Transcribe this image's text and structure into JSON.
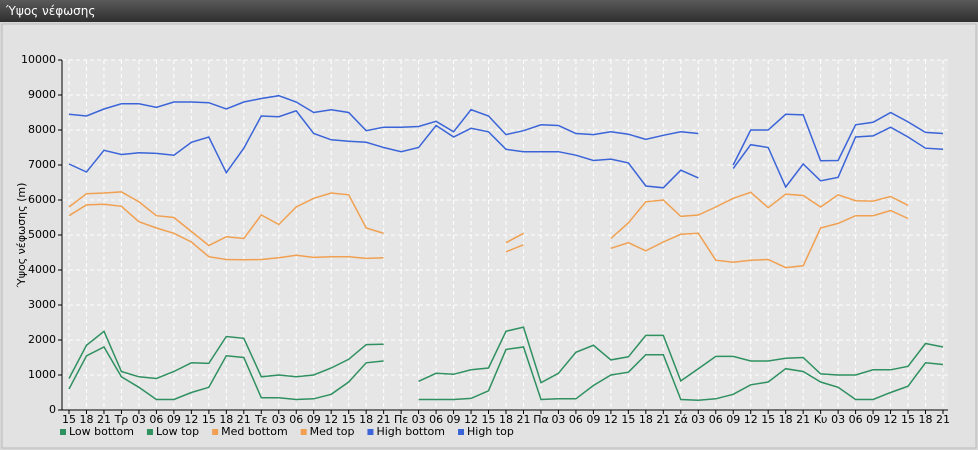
{
  "chart_data": {
    "type": "line",
    "title": "Ύψος νέφωσης",
    "y_label": "Ύψος νέφωσης (m)",
    "categories": [
      "15",
      "18",
      "21",
      "Τρ",
      "03",
      "06",
      "09",
      "12",
      "15",
      "18",
      "21",
      "Τε",
      "03",
      "06",
      "09",
      "12",
      "15",
      "18",
      "21",
      "Πε",
      "03",
      "06",
      "09",
      "12",
      "15",
      "18",
      "21",
      "Πα",
      "03",
      "06",
      "09",
      "12",
      "15",
      "18",
      "21",
      "Σά",
      "03",
      "06",
      "09",
      "12",
      "15",
      "18",
      "21",
      "Κυ",
      "03",
      "06",
      "09",
      "12",
      "15",
      "18",
      "21"
    ],
    "ylim": [
      0,
      10000
    ],
    "yticks": [
      0,
      1000,
      2000,
      3000,
      4000,
      5000,
      6000,
      7000,
      8000,
      9000,
      10000
    ],
    "grid": true,
    "legend": "bottom-left",
    "series": [
      {
        "name": "Low bottom",
        "color": "#2f9060",
        "values": [
          600,
          1550,
          1800,
          950,
          650,
          300,
          300,
          500,
          650,
          1550,
          1500,
          350,
          350,
          300,
          320,
          450,
          800,
          1350,
          1400,
          null,
          300,
          300,
          300,
          330,
          550,
          1730,
          1800,
          300,
          320,
          320,
          700,
          1000,
          1080,
          1580,
          1580,
          300,
          280,
          320,
          450,
          720,
          800,
          1180,
          1100,
          800,
          650,
          300,
          300,
          500,
          680,
          1350,
          1300
        ]
      },
      {
        "name": "Low top",
        "color": "#2f9060",
        "values": [
          900,
          1850,
          2250,
          1100,
          950,
          900,
          1100,
          1350,
          1330,
          2100,
          2050,
          950,
          1000,
          950,
          1000,
          1200,
          1450,
          1870,
          1880,
          null,
          820,
          1050,
          1020,
          1150,
          1200,
          2250,
          2370,
          780,
          1050,
          1650,
          1850,
          1430,
          1520,
          2130,
          2130,
          830,
          1180,
          1530,
          1530,
          1400,
          1400,
          1480,
          1500,
          1030,
          1000,
          1000,
          1150,
          1150,
          1250,
          1900,
          1800
        ]
      },
      {
        "name": "Med bottom",
        "color": "#f0a050",
        "values": [
          5550,
          5860,
          5880,
          5820,
          5380,
          5200,
          5050,
          4800,
          4380,
          4300,
          4290,
          4300,
          4350,
          4420,
          4360,
          4380,
          4380,
          4330,
          4350,
          null,
          null,
          null,
          null,
          null,
          null,
          4520,
          4720,
          null,
          null,
          null,
          null,
          4620,
          4780,
          4550,
          4800,
          5020,
          5050,
          4280,
          4220,
          4280,
          4300,
          4070,
          4120,
          5200,
          5330,
          5550,
          5550,
          5700,
          5470,
          null,
          null
        ]
      },
      {
        "name": "Med top",
        "color": "#f0a050",
        "values": [
          5800,
          6180,
          6200,
          6230,
          5950,
          5550,
          5500,
          5100,
          4700,
          4950,
          4900,
          5570,
          5300,
          5800,
          6050,
          6200,
          6150,
          5200,
          5050,
          null,
          null,
          null,
          null,
          null,
          null,
          4780,
          5050,
          null,
          null,
          null,
          null,
          4900,
          5350,
          5950,
          6000,
          5530,
          5570,
          5800,
          6050,
          6220,
          5780,
          6170,
          6130,
          5800,
          6150,
          5980,
          5970,
          6100,
          5850,
          null,
          null
        ]
      },
      {
        "name": "High bottom",
        "color": "#3a64d8",
        "values": [
          7030,
          6800,
          7420,
          7300,
          7350,
          7330,
          7280,
          7650,
          7800,
          6780,
          7480,
          8400,
          8380,
          8550,
          7900,
          7720,
          7680,
          7650,
          7500,
          7380,
          7500,
          8130,
          7800,
          8050,
          7950,
          7450,
          7380,
          7380,
          7380,
          7280,
          7130,
          7170,
          7060,
          6400,
          6350,
          6850,
          6630,
          null,
          6900,
          7580,
          7500,
          6370,
          7030,
          6550,
          6650,
          7800,
          7830,
          8080,
          7800,
          7480,
          7450
        ]
      },
      {
        "name": "High top",
        "color": "#3a64d8",
        "values": [
          8450,
          8400,
          8600,
          8750,
          8750,
          8650,
          8800,
          8800,
          8780,
          8600,
          8800,
          8900,
          8980,
          8800,
          8500,
          8580,
          8500,
          7980,
          8080,
          8080,
          8100,
          8250,
          7950,
          8580,
          8400,
          7870,
          7980,
          8150,
          8130,
          7900,
          7870,
          7950,
          7880,
          7730,
          7850,
          7950,
          7900,
          null,
          7000,
          8000,
          8000,
          8450,
          8430,
          7120,
          7130,
          8150,
          8220,
          8500,
          8230,
          7930,
          7900
        ]
      }
    ]
  }
}
